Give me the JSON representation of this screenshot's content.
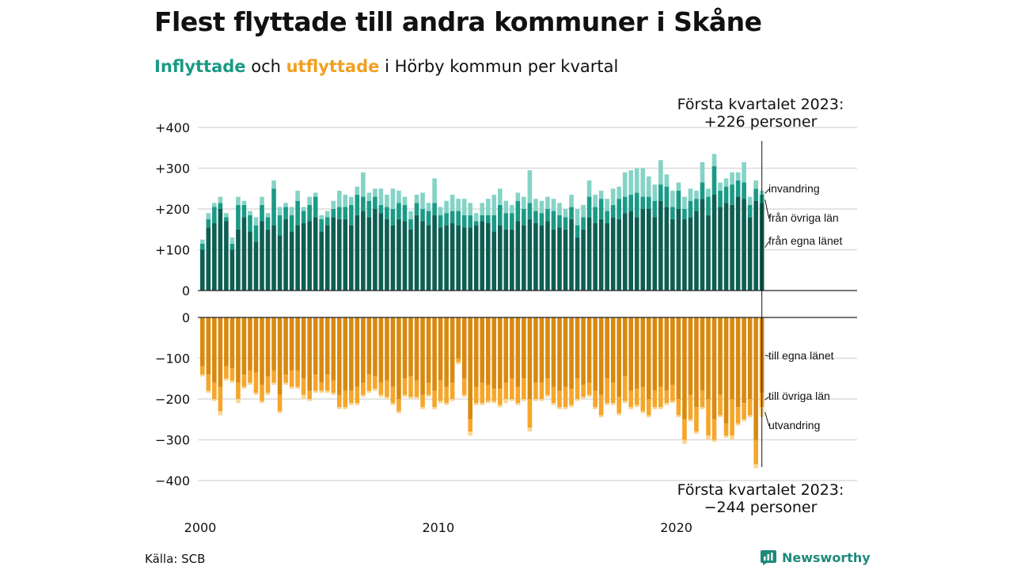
{
  "title": "Flest flyttade till andra kommuner i Skåne",
  "subtitle": {
    "in_word": "Inflyttade",
    "and_word": " och ",
    "out_word": "utflyttade",
    "rest": " i Hörby kommun per kvartal"
  },
  "source": "Källa: SCB",
  "logo_text": "Newsworthy",
  "colors": {
    "in_own": "#0e5e52",
    "in_other": "#1a9a86",
    "in_abroad": "#85d3c6",
    "out_own": "#d88a10",
    "out_other": "#f5a62a",
    "out_abroad": "#fad694"
  },
  "chart_data": {
    "type": "bar",
    "x_ticks": [
      "2000",
      "2010",
      "2020"
    ],
    "y_ticks_top": [
      "+400",
      "+300",
      "+200",
      "+100",
      "0"
    ],
    "y_ticks_bottom": [
      "0",
      "−100",
      "−200",
      "−300",
      "−400"
    ],
    "ylim_in": [
      0,
      400
    ],
    "ylim_out": [
      -400,
      0
    ],
    "quarters_start": "2000 Q1",
    "inflyttade": {
      "fran_egna_lanet": [
        100,
        155,
        165,
        200,
        170,
        100,
        150,
        180,
        145,
        120,
        170,
        150,
        160,
        135,
        175,
        145,
        160,
        165,
        170,
        180,
        145,
        160,
        180,
        175,
        175,
        160,
        185,
        195,
        180,
        200,
        190,
        175,
        160,
        175,
        170,
        150,
        185,
        170,
        160,
        185,
        155,
        160,
        165,
        160,
        155,
        155,
        160,
        170,
        165,
        145,
        160,
        150,
        150,
        170,
        160,
        175,
        165,
        160,
        170,
        150,
        155,
        150,
        175,
        130,
        150,
        180,
        165,
        175,
        165,
        180,
        175,
        190,
        195,
        180,
        200,
        200,
        180,
        220,
        205,
        175,
        200,
        175,
        180,
        195,
        225,
        185,
        235,
        205,
        215,
        210,
        230,
        225,
        180,
        220,
        215
      ],
      "fran_ovriga_lan": [
        15,
        20,
        40,
        15,
        10,
        15,
        60,
        30,
        40,
        40,
        40,
        30,
        90,
        50,
        30,
        40,
        60,
        30,
        40,
        50,
        30,
        20,
        20,
        30,
        30,
        50,
        50,
        35,
        40,
        30,
        20,
        30,
        40,
        40,
        40,
        25,
        30,
        30,
        35,
        30,
        30,
        30,
        30,
        35,
        30,
        30,
        10,
        15,
        20,
        40,
        50,
        40,
        40,
        50,
        40,
        40,
        30,
        30,
        30,
        45,
        30,
        30,
        30,
        30,
        30,
        50,
        40,
        50,
        30,
        30,
        50,
        40,
        40,
        60,
        30,
        30,
        40,
        40,
        50,
        30,
        45,
        25,
        40,
        30,
        40,
        45,
        70,
        40,
        40,
        50,
        40,
        40,
        30,
        30,
        20
      ],
      "invandring": [
        10,
        15,
        10,
        15,
        10,
        15,
        20,
        10,
        10,
        20,
        20,
        10,
        20,
        20,
        10,
        20,
        25,
        10,
        20,
        10,
        10,
        15,
        20,
        40,
        30,
        20,
        20,
        60,
        20,
        20,
        40,
        30,
        50,
        30,
        20,
        20,
        20,
        40,
        20,
        60,
        20,
        30,
        40,
        30,
        40,
        30,
        20,
        30,
        40,
        50,
        40,
        30,
        20,
        20,
        30,
        80,
        30,
        30,
        30,
        30,
        30,
        20,
        30,
        40,
        30,
        40,
        30,
        20,
        30,
        40,
        30,
        60,
        60,
        60,
        70,
        50,
        40,
        60,
        30,
        40,
        20,
        30,
        30,
        20,
        50,
        20,
        30,
        20,
        20,
        30,
        20,
        50,
        20,
        20,
        10
      ]
    },
    "utflyttade": {
      "till_egna_lanet": [
        120,
        140,
        160,
        170,
        120,
        125,
        160,
        140,
        130,
        135,
        165,
        145,
        130,
        190,
        140,
        130,
        130,
        150,
        180,
        140,
        160,
        140,
        155,
        190,
        180,
        180,
        170,
        160,
        140,
        145,
        160,
        155,
        170,
        200,
        150,
        145,
        155,
        190,
        160,
        180,
        155,
        170,
        160,
        100,
        150,
        250,
        170,
        160,
        165,
        175,
        175,
        160,
        150,
        170,
        150,
        200,
        160,
        160,
        150,
        170,
        180,
        170,
        175,
        150,
        165,
        160,
        180,
        190,
        150,
        160,
        195,
        145,
        180,
        175,
        170,
        200,
        180,
        170,
        180,
        165,
        200,
        250,
        190,
        220,
        180,
        200,
        250,
        190,
        260,
        200,
        220,
        210,
        200,
        300,
        185
      ],
      "till_ovriga_lan": [
        20,
        40,
        40,
        60,
        30,
        30,
        40,
        30,
        30,
        50,
        40,
        40,
        30,
        40,
        20,
        40,
        40,
        40,
        20,
        40,
        20,
        40,
        30,
        30,
        40,
        30,
        40,
        30,
        40,
        30,
        30,
        40,
        40,
        30,
        40,
        50,
        40,
        30,
        30,
        40,
        50,
        40,
        40,
        10,
        40,
        30,
        40,
        50,
        40,
        30,
        40,
        40,
        50,
        40,
        50,
        70,
        40,
        40,
        40,
        40,
        40,
        50,
        40,
        50,
        30,
        30,
        40,
        50,
        60,
        50,
        40,
        60,
        40,
        40,
        60,
        40,
        40,
        50,
        30,
        40,
        40,
        50,
        60,
        60,
        40,
        90,
        50,
        50,
        30,
        90,
        40,
        40,
        40,
        60,
        35
      ],
      "utvandring": [
        5,
        5,
        5,
        10,
        5,
        5,
        10,
        5,
        5,
        5,
        5,
        5,
        5,
        5,
        5,
        5,
        5,
        10,
        5,
        5,
        5,
        5,
        5,
        5,
        5,
        5,
        5,
        5,
        5,
        5,
        5,
        5,
        5,
        5,
        5,
        5,
        5,
        5,
        5,
        5,
        5,
        5,
        5,
        5,
        5,
        10,
        5,
        5,
        5,
        5,
        5,
        10,
        5,
        5,
        5,
        10,
        5,
        5,
        5,
        5,
        5,
        5,
        5,
        5,
        5,
        5,
        5,
        5,
        5,
        5,
        5,
        5,
        5,
        5,
        5,
        5,
        5,
        5,
        5,
        5,
        5,
        10,
        5,
        5,
        5,
        10,
        5,
        5,
        5,
        10,
        5,
        5,
        5,
        10,
        24
      ]
    },
    "series_labels_in": [
      "invandring",
      "från övriga län",
      "från egna länet"
    ],
    "series_labels_out": [
      "till egna länet",
      "till övriga län",
      "utvandring"
    ],
    "annotation_top": [
      "Första kvartalet 2023:",
      "+226 personer"
    ],
    "annotation_bottom": [
      "Första kvartalet 2023:",
      "−244 personer"
    ]
  }
}
